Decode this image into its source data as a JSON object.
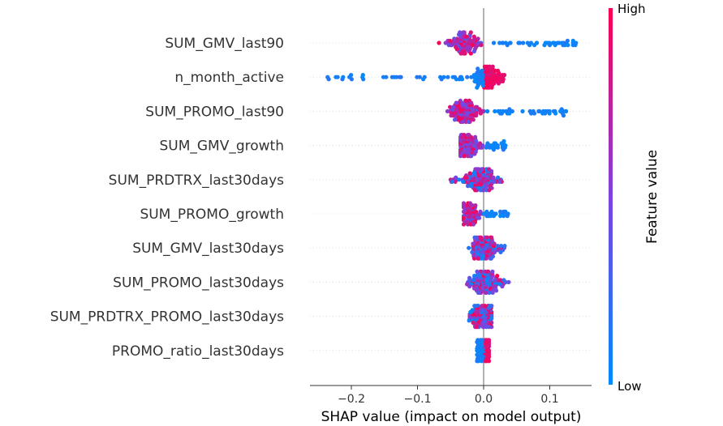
{
  "chart_data": {
    "type": "scatter",
    "subtype": "shap-beeswarm",
    "title": "",
    "xlabel": "SHAP value (impact on model output)",
    "xlim": [
      -0.26,
      0.165
    ],
    "xticks": [
      {
        "value": -0.2,
        "label": "−0.2"
      },
      {
        "value": -0.1,
        "label": "−0.1"
      },
      {
        "value": 0.0,
        "label": "0.0"
      },
      {
        "value": 0.1,
        "label": "0.1"
      }
    ],
    "features": [
      {
        "name": "SUM_GMV_last90",
        "min": -0.07,
        "max": 0.145,
        "high_side": "negative"
      },
      {
        "name": "n_month_active",
        "min": -0.24,
        "max": 0.04,
        "high_side": "positive"
      },
      {
        "name": "SUM_PROMO_last90",
        "min": -0.055,
        "max": 0.128,
        "high_side": "negative"
      },
      {
        "name": "SUM_GMV_growth",
        "min": -0.035,
        "max": 0.035,
        "high_side": "negative"
      },
      {
        "name": "SUM_PRDTRX_last30days",
        "min": -0.05,
        "max": 0.028,
        "high_side": "mixed"
      },
      {
        "name": "SUM_PROMO_growth",
        "min": -0.03,
        "max": 0.037,
        "high_side": "negative"
      },
      {
        "name": "SUM_GMV_last30days",
        "min": -0.028,
        "max": 0.035,
        "high_side": "mixed"
      },
      {
        "name": "SUM_PROMO_last30days",
        "min": -0.025,
        "max": 0.038,
        "high_side": "mixed"
      },
      {
        "name": "SUM_PRDTRX_PROMO_last30days",
        "min": -0.022,
        "max": 0.012,
        "high_side": "mixed"
      },
      {
        "name": "PROMO_ratio_last30days",
        "min": -0.01,
        "max": 0.008,
        "high_side": "positive"
      }
    ],
    "colorbar": {
      "title": "Feature value",
      "high_label": "High",
      "low_label": "Low",
      "low_color": "#008bfb",
      "high_color": "#ff0052",
      "mid_color": "#7e42e0"
    }
  }
}
